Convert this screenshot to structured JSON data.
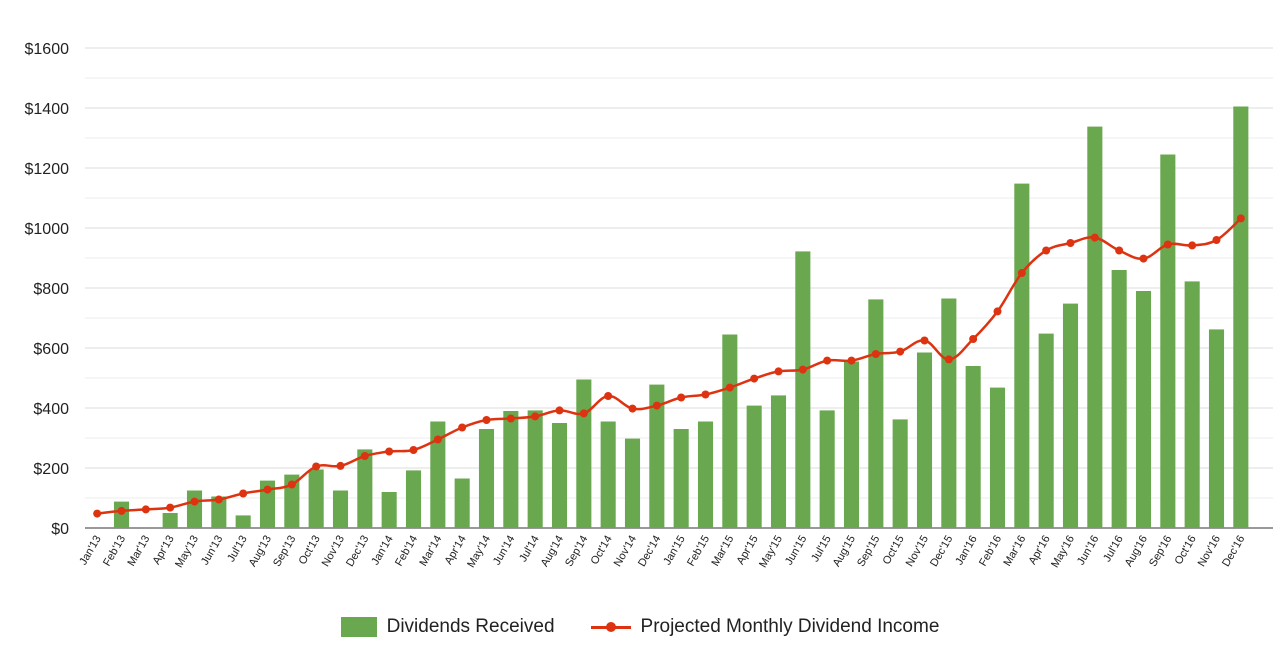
{
  "colors": {
    "bar": "#6aa84f",
    "line": "#dd3311",
    "grid": "#dddddd",
    "minor_grid": "#eeeeee"
  },
  "legend": {
    "bar_label": "Dividends Received",
    "line_label": "Projected Monthly Dividend Income"
  },
  "chart_data": {
    "type": "bar",
    "title": "",
    "xlabel": "",
    "ylabel": "",
    "ylim": [
      0,
      1600
    ],
    "yticks": [
      "$0",
      "$200",
      "$400",
      "$600",
      "$800",
      "$1000",
      "$1200",
      "$1400",
      "$1600"
    ],
    "grid": true,
    "legend_position": "bottom",
    "categories": [
      "Jan'13",
      "Feb'13",
      "Mar'13",
      "Apr'13",
      "May'13",
      "Jun'13",
      "Jul'13",
      "Aug'13",
      "Sep'13",
      "Oct'13",
      "Nov'13",
      "Dec'13",
      "Jan'14",
      "Feb'14",
      "Mar'14",
      "Apr'14",
      "May'14",
      "Jun'14",
      "Jul'14",
      "Aug'14",
      "Sep'14",
      "Oct'14",
      "Nov'14",
      "Dec'14",
      "Jan'15",
      "Feb'15",
      "Mar'15",
      "Apr'15",
      "May'15",
      "Jun'15",
      "Jul'15",
      "Aug'15",
      "Sep'15",
      "Oct'15",
      "Nov'15",
      "Dec'15",
      "Jan'16",
      "Feb'16",
      "Mar'16",
      "Apr'16",
      "May'16",
      "Jun'16",
      "Jul'16",
      "Aug'16",
      "Sep'16",
      "Oct'16",
      "Nov'16",
      "Dec'16"
    ],
    "series": [
      {
        "name": "Dividends Received",
        "type": "bar",
        "values": [
          0,
          88,
          0,
          50,
          125,
          105,
          42,
          158,
          178,
          195,
          125,
          262,
          120,
          192,
          355,
          165,
          330,
          390,
          392,
          350,
          495,
          355,
          298,
          478,
          330,
          355,
          645,
          408,
          442,
          922,
          392,
          555,
          762,
          362,
          585,
          765,
          540,
          468,
          1148,
          648,
          748,
          1338,
          860,
          790,
          1245,
          822,
          662,
          1405
        ]
      },
      {
        "name": "Projected Monthly Dividend Income",
        "type": "line",
        "values": [
          48,
          57,
          62,
          68,
          88,
          95,
          115,
          128,
          145,
          205,
          207,
          240,
          255,
          260,
          295,
          335,
          360,
          365,
          372,
          392,
          382,
          440,
          398,
          408,
          435,
          445,
          468,
          498,
          522,
          528,
          558,
          558,
          580,
          588,
          625,
          562,
          630,
          722,
          850,
          925,
          950,
          968,
          925,
          898,
          945,
          942,
          960,
          1032
        ]
      }
    ]
  }
}
